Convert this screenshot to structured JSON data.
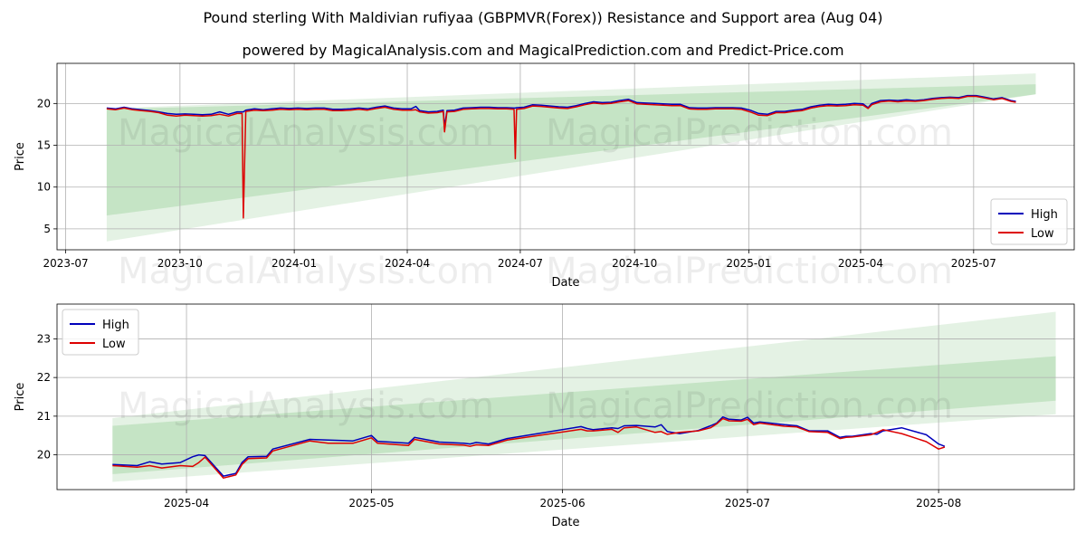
{
  "header": {
    "title": "Pound sterling With Maldivian rufiyaa (GBPMVR(Forex)) Resistance and Support area (Aug 04)",
    "subtitle": "powered by MagicalAnalysis.com and MagicalPrediction.com and Predict-Price.com"
  },
  "watermarks": [
    "MagicalAnalysis.com",
    "MagicalPrediction.com"
  ],
  "colors": {
    "high": "#0000bb",
    "low": "#dd0000",
    "band": "#2e9e2e"
  },
  "chart_data": [
    {
      "type": "line",
      "xlabel": "Date",
      "ylabel": "Price",
      "x_ticks": [
        "2023-07",
        "2023-10",
        "2024-01",
        "2024-04",
        "2024-07",
        "2024-10",
        "2025-01",
        "2025-04",
        "2025-07"
      ],
      "y_ticks": [
        "5",
        "10",
        "15",
        "20"
      ],
      "ylim": [
        2.5,
        24.8
      ],
      "xlim": [
        "2023-06-24",
        "2025-09-20"
      ],
      "legend": {
        "position": "bottom-right",
        "entries": [
          "High",
          "Low"
        ]
      },
      "grid": true,
      "bands": [
        {
          "name": "support-resistance-dark",
          "x": [
            "2023-08-03",
            "2025-08-20"
          ],
          "upper": [
            19.3,
            22.3
          ],
          "lower": [
            6.6,
            21.1
          ]
        },
        {
          "name": "support-resistance-light",
          "x": [
            "2023-08-03",
            "2025-08-20"
          ],
          "upper": [
            19.4,
            23.6
          ],
          "lower": [
            3.5,
            21.1
          ]
        }
      ],
      "series": [
        {
          "name": "High",
          "x": [
            "2023-08-03",
            "2023-08-10",
            "2023-08-17",
            "2023-08-24",
            "2023-08-31",
            "2023-09-07",
            "2023-09-14",
            "2023-09-21",
            "2023-09-28",
            "2023-10-05",
            "2023-10-12",
            "2023-10-19",
            "2023-10-26",
            "2023-11-02",
            "2023-11-09",
            "2023-11-16",
            "2023-11-20",
            "2023-11-21",
            "2023-11-23",
            "2023-11-30",
            "2023-12-07",
            "2023-12-14",
            "2023-12-21",
            "2023-12-28",
            "2024-01-04",
            "2024-01-11",
            "2024-01-18",
            "2024-01-25",
            "2024-02-01",
            "2024-02-08",
            "2024-02-15",
            "2024-02-22",
            "2024-02-29",
            "2024-03-07",
            "2024-03-14",
            "2024-03-21",
            "2024-03-28",
            "2024-04-04",
            "2024-04-08",
            "2024-04-11",
            "2024-04-18",
            "2024-04-25",
            "2024-04-30",
            "2024-05-01",
            "2024-05-03",
            "2024-05-09",
            "2024-05-16",
            "2024-05-23",
            "2024-05-30",
            "2024-06-06",
            "2024-06-13",
            "2024-06-20",
            "2024-06-26",
            "2024-06-27",
            "2024-06-28",
            "2024-07-04",
            "2024-07-11",
            "2024-07-18",
            "2024-07-25",
            "2024-08-01",
            "2024-08-08",
            "2024-08-15",
            "2024-08-22",
            "2024-08-29",
            "2024-09-05",
            "2024-09-12",
            "2024-09-19",
            "2024-09-26",
            "2024-10-03",
            "2024-10-10",
            "2024-10-17",
            "2024-10-24",
            "2024-10-31",
            "2024-11-07",
            "2024-11-14",
            "2024-11-21",
            "2024-11-28",
            "2024-12-05",
            "2024-12-12",
            "2024-12-19",
            "2024-12-26",
            "2025-01-02",
            "2025-01-09",
            "2025-01-16",
            "2025-01-23",
            "2025-01-30",
            "2025-02-06",
            "2025-02-13",
            "2025-02-20",
            "2025-02-27",
            "2025-03-06",
            "2025-03-13",
            "2025-03-20",
            "2025-03-27",
            "2025-04-03",
            "2025-04-07",
            "2025-04-10",
            "2025-04-17",
            "2025-04-24",
            "2025-05-01",
            "2025-05-08",
            "2025-05-15",
            "2025-05-22",
            "2025-05-29",
            "2025-06-05",
            "2025-06-12",
            "2025-06-19",
            "2025-06-26",
            "2025-07-03",
            "2025-07-10",
            "2025-07-17",
            "2025-07-24",
            "2025-07-31",
            "2025-08-04"
          ],
          "values": [
            19.45,
            19.35,
            19.55,
            19.35,
            19.25,
            19.15,
            19.0,
            18.8,
            18.7,
            18.75,
            18.7,
            18.65,
            18.7,
            19.0,
            18.7,
            19.0,
            19.0,
            19.0,
            19.2,
            19.35,
            19.25,
            19.35,
            19.45,
            19.4,
            19.45,
            19.4,
            19.45,
            19.45,
            19.3,
            19.3,
            19.35,
            19.45,
            19.35,
            19.55,
            19.7,
            19.45,
            19.35,
            19.35,
            19.65,
            19.15,
            19.0,
            19.05,
            19.2,
            17.2,
            19.15,
            19.2,
            19.45,
            19.5,
            19.55,
            19.55,
            19.5,
            19.5,
            19.45,
            19.45,
            19.5,
            19.55,
            19.85,
            19.8,
            19.7,
            19.6,
            19.55,
            19.75,
            20.0,
            20.2,
            20.1,
            20.15,
            20.35,
            20.5,
            20.1,
            20.05,
            20.0,
            19.95,
            19.9,
            19.9,
            19.5,
            19.45,
            19.45,
            19.5,
            19.5,
            19.5,
            19.45,
            19.2,
            18.8,
            18.7,
            19.05,
            19.05,
            19.2,
            19.3,
            19.6,
            19.8,
            19.9,
            19.85,
            19.9,
            20.0,
            19.95,
            19.5,
            20.0,
            20.35,
            20.4,
            20.35,
            20.45,
            20.35,
            20.45,
            20.6,
            20.7,
            20.75,
            20.7,
            20.95,
            20.95,
            20.75,
            20.55,
            20.7,
            20.35,
            20.25
          ]
        },
        {
          "name": "Low",
          "x": [
            "2023-08-03",
            "2023-08-10",
            "2023-08-17",
            "2023-08-24",
            "2023-08-31",
            "2023-09-07",
            "2023-09-14",
            "2023-09-21",
            "2023-09-28",
            "2023-10-05",
            "2023-10-12",
            "2023-10-19",
            "2023-10-26",
            "2023-11-02",
            "2023-11-09",
            "2023-11-16",
            "2023-11-20",
            "2023-11-21",
            "2023-11-23",
            "2023-11-30",
            "2023-12-07",
            "2023-12-14",
            "2023-12-21",
            "2023-12-28",
            "2024-01-04",
            "2024-01-11",
            "2024-01-18",
            "2024-01-25",
            "2024-02-01",
            "2024-02-08",
            "2024-02-15",
            "2024-02-22",
            "2024-02-29",
            "2024-03-07",
            "2024-03-14",
            "2024-03-21",
            "2024-03-28",
            "2024-04-04",
            "2024-04-08",
            "2024-04-11",
            "2024-04-18",
            "2024-04-25",
            "2024-04-30",
            "2024-05-01",
            "2024-05-03",
            "2024-05-09",
            "2024-05-16",
            "2024-05-23",
            "2024-05-30",
            "2024-06-06",
            "2024-06-13",
            "2024-06-20",
            "2024-06-26",
            "2024-06-27",
            "2024-06-28",
            "2024-07-04",
            "2024-07-11",
            "2024-07-18",
            "2024-07-25",
            "2024-08-01",
            "2024-08-08",
            "2024-08-15",
            "2024-08-22",
            "2024-08-29",
            "2024-09-05",
            "2024-09-12",
            "2024-09-19",
            "2024-09-26",
            "2024-10-03",
            "2024-10-10",
            "2024-10-17",
            "2024-10-24",
            "2024-10-31",
            "2024-11-07",
            "2024-11-14",
            "2024-11-21",
            "2024-11-28",
            "2024-12-05",
            "2024-12-12",
            "2024-12-19",
            "2024-12-26",
            "2025-01-02",
            "2025-01-09",
            "2025-01-16",
            "2025-01-23",
            "2025-01-30",
            "2025-02-06",
            "2025-02-13",
            "2025-02-20",
            "2025-02-27",
            "2025-03-06",
            "2025-03-13",
            "2025-03-20",
            "2025-03-27",
            "2025-04-03",
            "2025-04-07",
            "2025-04-10",
            "2025-04-17",
            "2025-04-24",
            "2025-05-01",
            "2025-05-08",
            "2025-05-15",
            "2025-05-22",
            "2025-05-29",
            "2025-06-05",
            "2025-06-12",
            "2025-06-19",
            "2025-06-26",
            "2025-07-03",
            "2025-07-10",
            "2025-07-17",
            "2025-07-24",
            "2025-07-31",
            "2025-08-04"
          ],
          "values": [
            19.35,
            19.25,
            19.45,
            19.25,
            19.15,
            19.05,
            18.9,
            18.6,
            18.5,
            18.6,
            18.55,
            18.5,
            18.55,
            18.7,
            18.5,
            18.8,
            18.8,
            6.3,
            19.05,
            19.2,
            19.15,
            19.2,
            19.3,
            19.25,
            19.3,
            19.25,
            19.3,
            19.3,
            19.15,
            19.15,
            19.2,
            19.3,
            19.2,
            19.4,
            19.55,
            19.3,
            19.2,
            19.2,
            19.25,
            19.0,
            18.85,
            18.9,
            19.05,
            16.6,
            19.0,
            19.05,
            19.3,
            19.35,
            19.4,
            19.4,
            19.35,
            19.35,
            19.3,
            13.4,
            19.3,
            19.4,
            19.7,
            19.65,
            19.55,
            19.45,
            19.4,
            19.6,
            19.85,
            20.05,
            19.95,
            20.0,
            20.2,
            20.35,
            19.95,
            19.9,
            19.85,
            19.8,
            19.75,
            19.75,
            19.35,
            19.3,
            19.3,
            19.35,
            19.35,
            19.35,
            19.3,
            19.0,
            18.6,
            18.55,
            18.9,
            18.9,
            19.05,
            19.15,
            19.45,
            19.65,
            19.75,
            19.7,
            19.75,
            19.85,
            19.8,
            19.4,
            19.85,
            20.2,
            20.3,
            20.2,
            20.3,
            20.25,
            20.35,
            20.5,
            20.6,
            20.65,
            20.6,
            20.85,
            20.85,
            20.65,
            20.45,
            20.6,
            20.25,
            20.15
          ]
        }
      ]
    },
    {
      "type": "line",
      "xlabel": "Date",
      "ylabel": "Price",
      "x_ticks": [
        "2025-04",
        "2025-05",
        "2025-06",
        "2025-07",
        "2025-08"
      ],
      "y_ticks": [
        "20",
        "21",
        "22",
        "23"
      ],
      "ylim": [
        19.1,
        23.9
      ],
      "xlim": [
        "2025-03-11",
        "2025-08-23"
      ],
      "legend": {
        "position": "top-left",
        "entries": [
          "High",
          "Low"
        ]
      },
      "grid": true,
      "bands": [
        {
          "name": "support-resistance-dark",
          "x": [
            "2025-03-20",
            "2025-08-20"
          ],
          "upper": [
            20.75,
            22.55
          ],
          "lower": [
            19.5,
            21.4
          ]
        },
        {
          "name": "support-resistance-light",
          "x": [
            "2025-03-20",
            "2025-08-20"
          ],
          "upper": [
            20.95,
            23.7
          ],
          "lower": [
            19.3,
            21.05
          ]
        }
      ],
      "series": [
        {
          "name": "High",
          "x": [
            "2025-03-20",
            "2025-03-24",
            "2025-03-26",
            "2025-03-28",
            "2025-03-31",
            "2025-04-02",
            "2025-04-03",
            "2025-04-04",
            "2025-04-07",
            "2025-04-09",
            "2025-04-10",
            "2025-04-11",
            "2025-04-14",
            "2025-04-15",
            "2025-04-21",
            "2025-04-24",
            "2025-04-28",
            "2025-05-01",
            "2025-05-02",
            "2025-05-07",
            "2025-05-08",
            "2025-05-12",
            "2025-05-16",
            "2025-05-17",
            "2025-05-18",
            "2025-05-20",
            "2025-05-23",
            "2025-06-04",
            "2025-06-05",
            "2025-06-06",
            "2025-06-09",
            "2025-06-10",
            "2025-06-11",
            "2025-06-13",
            "2025-06-16",
            "2025-06-17",
            "2025-06-18",
            "2025-06-20",
            "2025-06-23",
            "2025-06-25",
            "2025-06-26",
            "2025-06-27",
            "2025-06-28",
            "2025-06-30",
            "2025-07-01",
            "2025-07-02",
            "2025-07-03",
            "2025-07-07",
            "2025-07-09",
            "2025-07-11",
            "2025-07-14",
            "2025-07-16",
            "2025-07-17",
            "2025-07-18",
            "2025-07-21",
            "2025-07-22",
            "2025-07-23",
            "2025-07-26",
            "2025-07-30",
            "2025-08-01",
            "2025-08-02"
          ],
          "values": [
            19.75,
            19.72,
            19.82,
            19.76,
            19.8,
            19.95,
            20.0,
            19.98,
            19.45,
            19.52,
            19.8,
            19.95,
            19.96,
            20.15,
            20.4,
            20.38,
            20.36,
            20.5,
            20.35,
            20.3,
            20.45,
            20.33,
            20.3,
            20.28,
            20.32,
            20.28,
            20.42,
            20.73,
            20.68,
            20.65,
            20.7,
            20.68,
            20.75,
            20.76,
            20.72,
            20.78,
            20.6,
            20.55,
            20.63,
            20.75,
            20.82,
            20.98,
            20.92,
            20.9,
            20.97,
            20.82,
            20.85,
            20.78,
            20.75,
            20.62,
            20.62,
            20.45,
            20.48,
            20.48,
            20.55,
            20.53,
            20.62,
            20.7,
            20.52,
            20.28,
            20.22
          ]
        },
        {
          "name": "Low",
          "x": [
            "2025-03-20",
            "2025-03-24",
            "2025-03-26",
            "2025-03-28",
            "2025-03-31",
            "2025-04-02",
            "2025-04-03",
            "2025-04-04",
            "2025-04-07",
            "2025-04-09",
            "2025-04-10",
            "2025-04-11",
            "2025-04-14",
            "2025-04-15",
            "2025-04-21",
            "2025-04-24",
            "2025-04-28",
            "2025-05-01",
            "2025-05-02",
            "2025-05-07",
            "2025-05-08",
            "2025-05-12",
            "2025-05-16",
            "2025-05-17",
            "2025-05-18",
            "2025-05-20",
            "2025-05-23",
            "2025-06-04",
            "2025-06-05",
            "2025-06-06",
            "2025-06-09",
            "2025-06-10",
            "2025-06-11",
            "2025-06-13",
            "2025-06-16",
            "2025-06-17",
            "2025-06-18",
            "2025-06-20",
            "2025-06-23",
            "2025-06-25",
            "2025-06-26",
            "2025-06-27",
            "2025-06-28",
            "2025-06-30",
            "2025-07-01",
            "2025-07-02",
            "2025-07-03",
            "2025-07-07",
            "2025-07-09",
            "2025-07-11",
            "2025-07-14",
            "2025-07-16",
            "2025-07-17",
            "2025-07-18",
            "2025-07-21",
            "2025-07-22",
            "2025-07-23",
            "2025-07-26",
            "2025-07-30",
            "2025-08-01",
            "2025-08-02"
          ],
          "values": [
            19.72,
            19.68,
            19.72,
            19.66,
            19.72,
            19.7,
            19.8,
            19.94,
            19.4,
            19.48,
            19.75,
            19.9,
            19.92,
            20.1,
            20.36,
            20.3,
            20.3,
            20.44,
            20.3,
            20.24,
            20.4,
            20.28,
            20.25,
            20.22,
            20.26,
            20.24,
            20.38,
            20.66,
            20.62,
            20.62,
            20.66,
            20.58,
            20.7,
            20.72,
            20.58,
            20.6,
            20.53,
            20.58,
            20.62,
            20.7,
            20.8,
            20.94,
            20.88,
            20.87,
            20.92,
            20.78,
            20.82,
            20.74,
            20.72,
            20.6,
            20.58,
            20.42,
            20.45,
            20.46,
            20.52,
            20.58,
            20.65,
            20.55,
            20.34,
            20.15,
            20.2
          ]
        }
      ]
    }
  ]
}
